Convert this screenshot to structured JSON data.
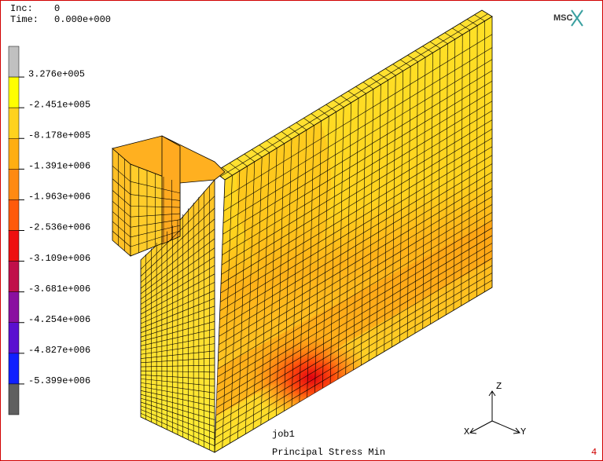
{
  "header": {
    "inc_label": "Inc:",
    "inc": "0",
    "time_label": "Time:",
    "time": "0.000e+000"
  },
  "logo": "MSC",
  "legend": {
    "labels": [
      "3.276e+005",
      "-2.451e+005",
      "-8.178e+005",
      "-1.391e+006",
      "-1.963e+006",
      "-2.536e+006",
      "-3.109e+006",
      "-3.681e+006",
      "-4.254e+006",
      "-4.827e+006",
      "-5.399e+006"
    ],
    "colors": [
      "#c0c0c0",
      "#ffff00",
      "#ffd21e",
      "#ffae12",
      "#ff8a12",
      "#ff5a0a",
      "#ee1010",
      "#c0104a",
      "#8a10a0",
      "#5a10d0",
      "#1020ff",
      "#606060"
    ]
  },
  "job": "job1",
  "result": "Principal Stress Min",
  "axes": {
    "z": "Z",
    "y": "Y",
    "x": "X"
  },
  "window_id": "4"
}
